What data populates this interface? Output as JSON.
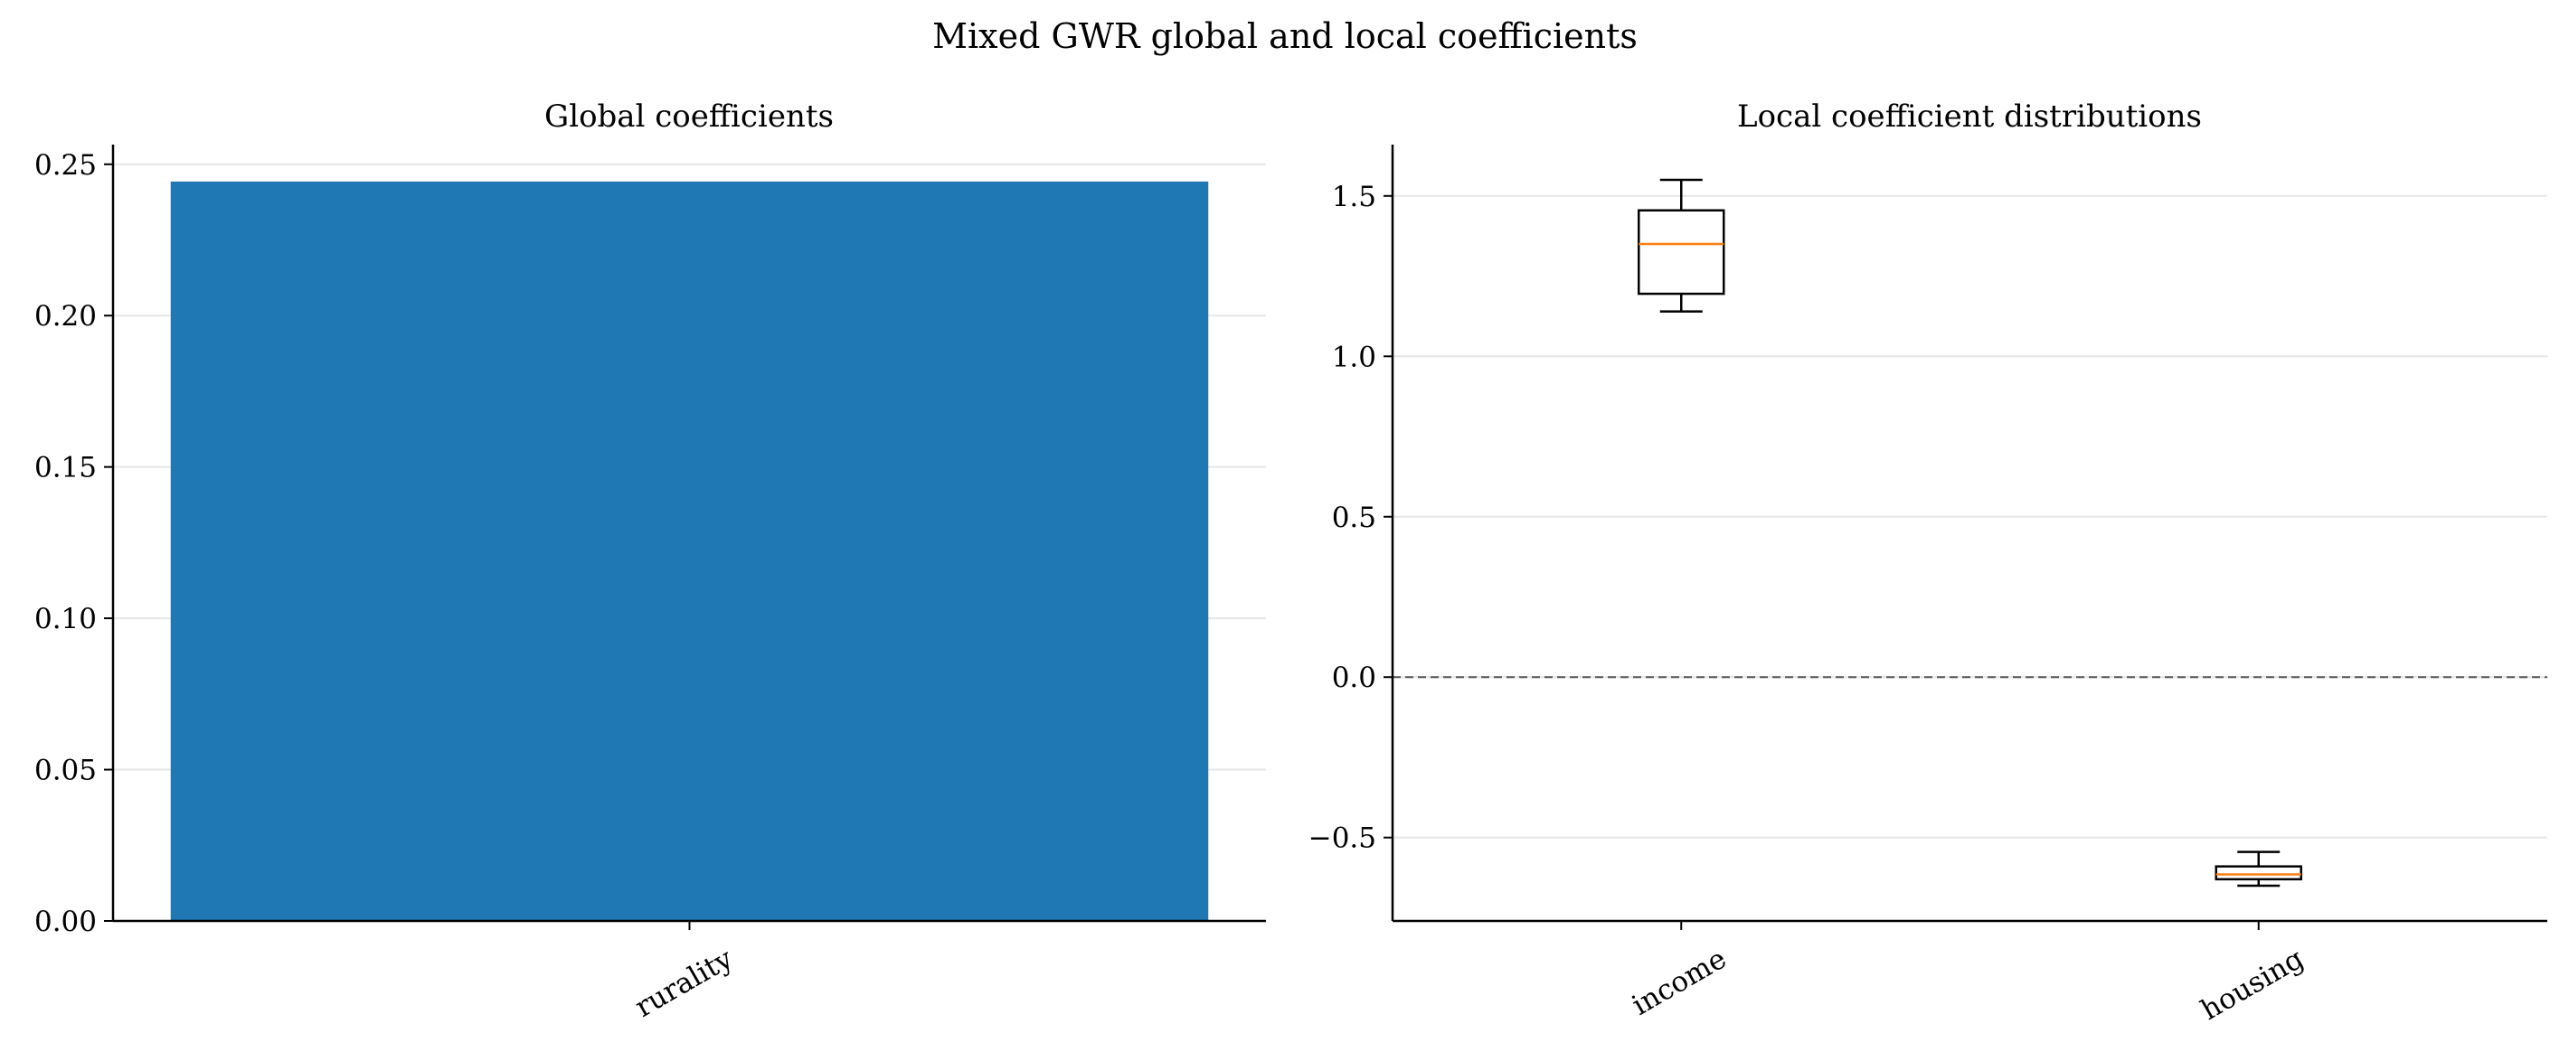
{
  "figure": {
    "title": "Mixed GWR global and local coefficients"
  },
  "chart_data": [
    {
      "type": "bar",
      "title": "Global coefficients",
      "xlabel": "",
      "ylabel": "",
      "categories": [
        "rurality"
      ],
      "values": [
        0.2443
      ],
      "ylim": [
        0,
        0.2565
      ],
      "yticks": [
        0.0,
        0.05,
        0.1,
        0.15,
        0.2,
        0.25
      ],
      "ytick_labels": [
        "0.00",
        "0.05",
        "0.10",
        "0.15",
        "0.20",
        "0.25"
      ],
      "grid": "y",
      "bar_color": "#1f77b4"
    },
    {
      "type": "boxplot",
      "title": "Local coefficient distributions",
      "xlabel": "",
      "ylabel": "",
      "categories": [
        "income",
        "housing"
      ],
      "boxes": [
        {
          "label": "income",
          "whisker_low": 1.14,
          "q1": 1.195,
          "median": 1.35,
          "q3": 1.455,
          "whisker_high": 1.55
        },
        {
          "label": "housing",
          "whisker_low": -0.65,
          "q1": -0.63,
          "median": -0.615,
          "q3": -0.59,
          "whisker_high": -0.545
        }
      ],
      "ylim": [
        -0.76,
        1.66
      ],
      "yticks": [
        -0.5,
        0.0,
        0.5,
        1.0,
        1.5
      ],
      "ytick_labels": [
        "−0.5",
        "0.0",
        "0.5",
        "1.0",
        "1.5"
      ],
      "reference_line": 0.0,
      "grid": "y",
      "median_color": "#ff7f0e"
    }
  ]
}
